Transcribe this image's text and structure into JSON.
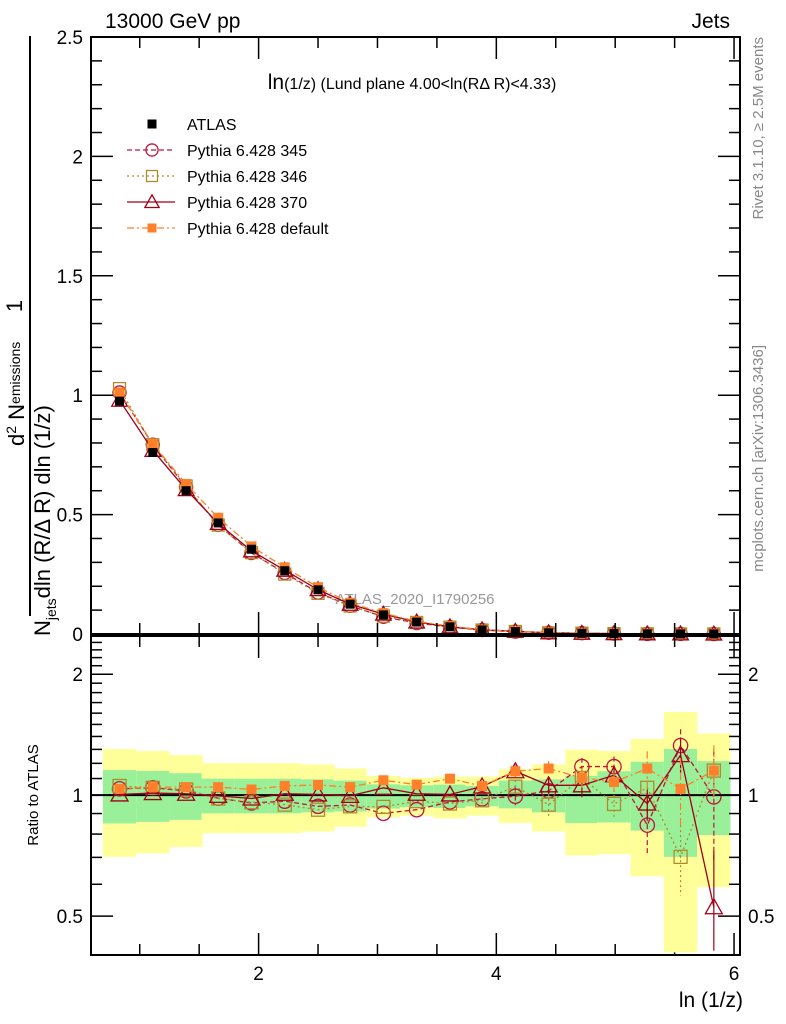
{
  "chart_data": [
    {
      "type": "line",
      "panel": "main",
      "header_left": "13000 GeV pp",
      "header_right": "Jets",
      "title": "ln(1/z) (Lund plane 4.00<ln(RΔ R)<4.33)",
      "title_prefix": "ln",
      "title_rest": "(1/z) (Lund plane 4.00<ln(RΔ R)<4.33)",
      "ylabel": {
        "num1": "1",
        "den1": "N",
        "den1_sub": "jets",
        "num2": "d",
        "num2_sup": "2",
        "num2_b": " N",
        "num2_sub": "emissions",
        "den2": "dln (R/Δ R) dln (1/z)"
      },
      "watermark": "ATLAS_2020_I1790256",
      "side_text_top": "Rivet 3.1.10, ≥ 2.5M events",
      "side_text_bottom": "mcplots.cern.ch [arXiv:1306.3436]",
      "xlim": [
        0.59,
        6.05
      ],
      "ylim": [
        0,
        2.5
      ],
      "yticks": [
        "0",
        "0.5",
        "1",
        "1.5",
        "2",
        "2.5"
      ],
      "x": [
        0.83,
        1.11,
        1.39,
        1.66,
        1.94,
        2.22,
        2.5,
        2.77,
        3.05,
        3.33,
        3.61,
        3.88,
        4.16,
        4.44,
        4.72,
        4.99,
        5.27,
        5.55,
        5.83
      ],
      "atlas": [
        0.975,
        0.76,
        0.6,
        0.465,
        0.355,
        0.265,
        0.185,
        0.125,
        0.08,
        0.05,
        0.03,
        0.017,
        0.01,
        0.005,
        0.003,
        0.0015,
        0.0008,
        0.0004,
        0.0002
      ],
      "legend": {
        "placement": "top-left",
        "entries": [
          "ATLAS",
          "Pythia 6.428 345",
          "Pythia 6.428 346",
          "Pythia 6.428 370",
          "Pythia 6.428 default"
        ]
      }
    },
    {
      "type": "line",
      "panel": "ratio",
      "ylabel": "Ratio to ATLAS",
      "xlabel": "ln (1/z)",
      "yscale": "log",
      "ylim": [
        0.4,
        2.49
      ],
      "yticks": [
        "0.5",
        "1",
        "2"
      ],
      "xticks": [
        "2",
        "4",
        "6"
      ],
      "band_total_upper": [
        1.303,
        1.288,
        1.258,
        1.201,
        1.201,
        1.201,
        1.192,
        1.165,
        1.116,
        1.104,
        1.112,
        1.112,
        1.16,
        1.192,
        1.298,
        1.288,
        1.381,
        1.611,
        1.424
      ],
      "band_total_lower": [
        0.702,
        0.716,
        0.743,
        0.804,
        0.804,
        0.804,
        0.812,
        0.834,
        0.88,
        0.889,
        0.875,
        0.889,
        0.852,
        0.812,
        0.708,
        0.713,
        0.628,
        0.406,
        0.59
      ],
      "band_stat_upper": [
        1.154,
        1.149,
        1.134,
        1.099,
        1.099,
        1.099,
        1.095,
        1.087,
        1.064,
        1.058,
        1.062,
        1.054,
        1.087,
        1.095,
        1.116,
        1.147,
        1.211,
        1.303,
        1.215
      ],
      "band_stat_lower": [
        0.85,
        0.858,
        0.868,
        0.901,
        0.901,
        0.901,
        0.906,
        0.911,
        0.926,
        0.933,
        0.929,
        0.938,
        0.927,
        0.906,
        0.852,
        0.855,
        0.816,
        0.702,
        0.795
      ],
      "series": [
        {
          "name": "Pythia 6.428 345",
          "color": "#c0143c",
          "marker": "circle",
          "dash": "5,3",
          "values": [
            1.037,
            1.043,
            1.025,
            0.983,
            0.956,
            0.966,
            0.938,
            0.945,
            0.901,
            0.92,
            0.962,
            0.979,
            0.994,
            1.025,
            1.178,
            1.178,
            0.842,
            1.329,
            0.99
          ],
          "err": [
            0,
            0,
            0,
            0,
            0,
            0,
            0,
            0,
            0,
            0,
            0,
            0,
            0.05,
            0.05,
            0.06,
            0.07,
            0.13,
            0.13,
            0.3
          ]
        },
        {
          "name": "Pythia 6.428 346",
          "color": "#b08a2e",
          "marker": "square",
          "dash": "2,3",
          "values": [
            1.054,
            1.043,
            1.033,
            0.981,
            0.96,
            0.947,
            0.92,
            0.938,
            0.935,
            0.966,
            0.953,
            0.971,
            1.05,
            0.947,
            1.104,
            0.951,
            1.043,
            0.702,
            1.151
          ],
          "err": [
            0,
            0,
            0,
            0,
            0,
            0,
            0,
            0,
            0,
            0,
            0,
            0.02,
            0.04,
            0.06,
            0.06,
            0.08,
            0.1,
            0.14,
            0.15
          ]
        },
        {
          "name": "Pythia 6.428 370",
          "color": "#a00018",
          "marker": "triangle",
          "dash": "",
          "values": [
            1.004,
            1.012,
            1.008,
            0.996,
            0.981,
            1.008,
            1.004,
            0.996,
            1.043,
            1.008,
            1.004,
            1.051,
            1.147,
            1.058,
            1.058,
            1.121,
            0.953,
            1.258,
            0.526
          ],
          "err": [
            0,
            0,
            0,
            0,
            0,
            0,
            0,
            0,
            0,
            0,
            0,
            0.03,
            0.04,
            0.05,
            0.07,
            0.06,
            0.08,
            0.12,
            0.2
          ]
        },
        {
          "name": "Pythia 6.428 default",
          "color": "#ff7f2a",
          "marker": "filled-square",
          "dash": "7,3,2,3",
          "values": [
            1.037,
            1.047,
            1.047,
            1.047,
            1.033,
            1.054,
            1.06,
            1.047,
            1.089,
            1.062,
            1.099,
            1.054,
            1.147,
            1.165,
            1.104,
            1.078,
            1.165,
            1.037,
            1.151
          ],
          "err": [
            0,
            0,
            0,
            0,
            0,
            0,
            0,
            0,
            0.02,
            0.02,
            0.02,
            0.03,
            0.04,
            0.05,
            0.06,
            0.06,
            0.12,
            0.2,
            0.18
          ]
        }
      ]
    }
  ]
}
